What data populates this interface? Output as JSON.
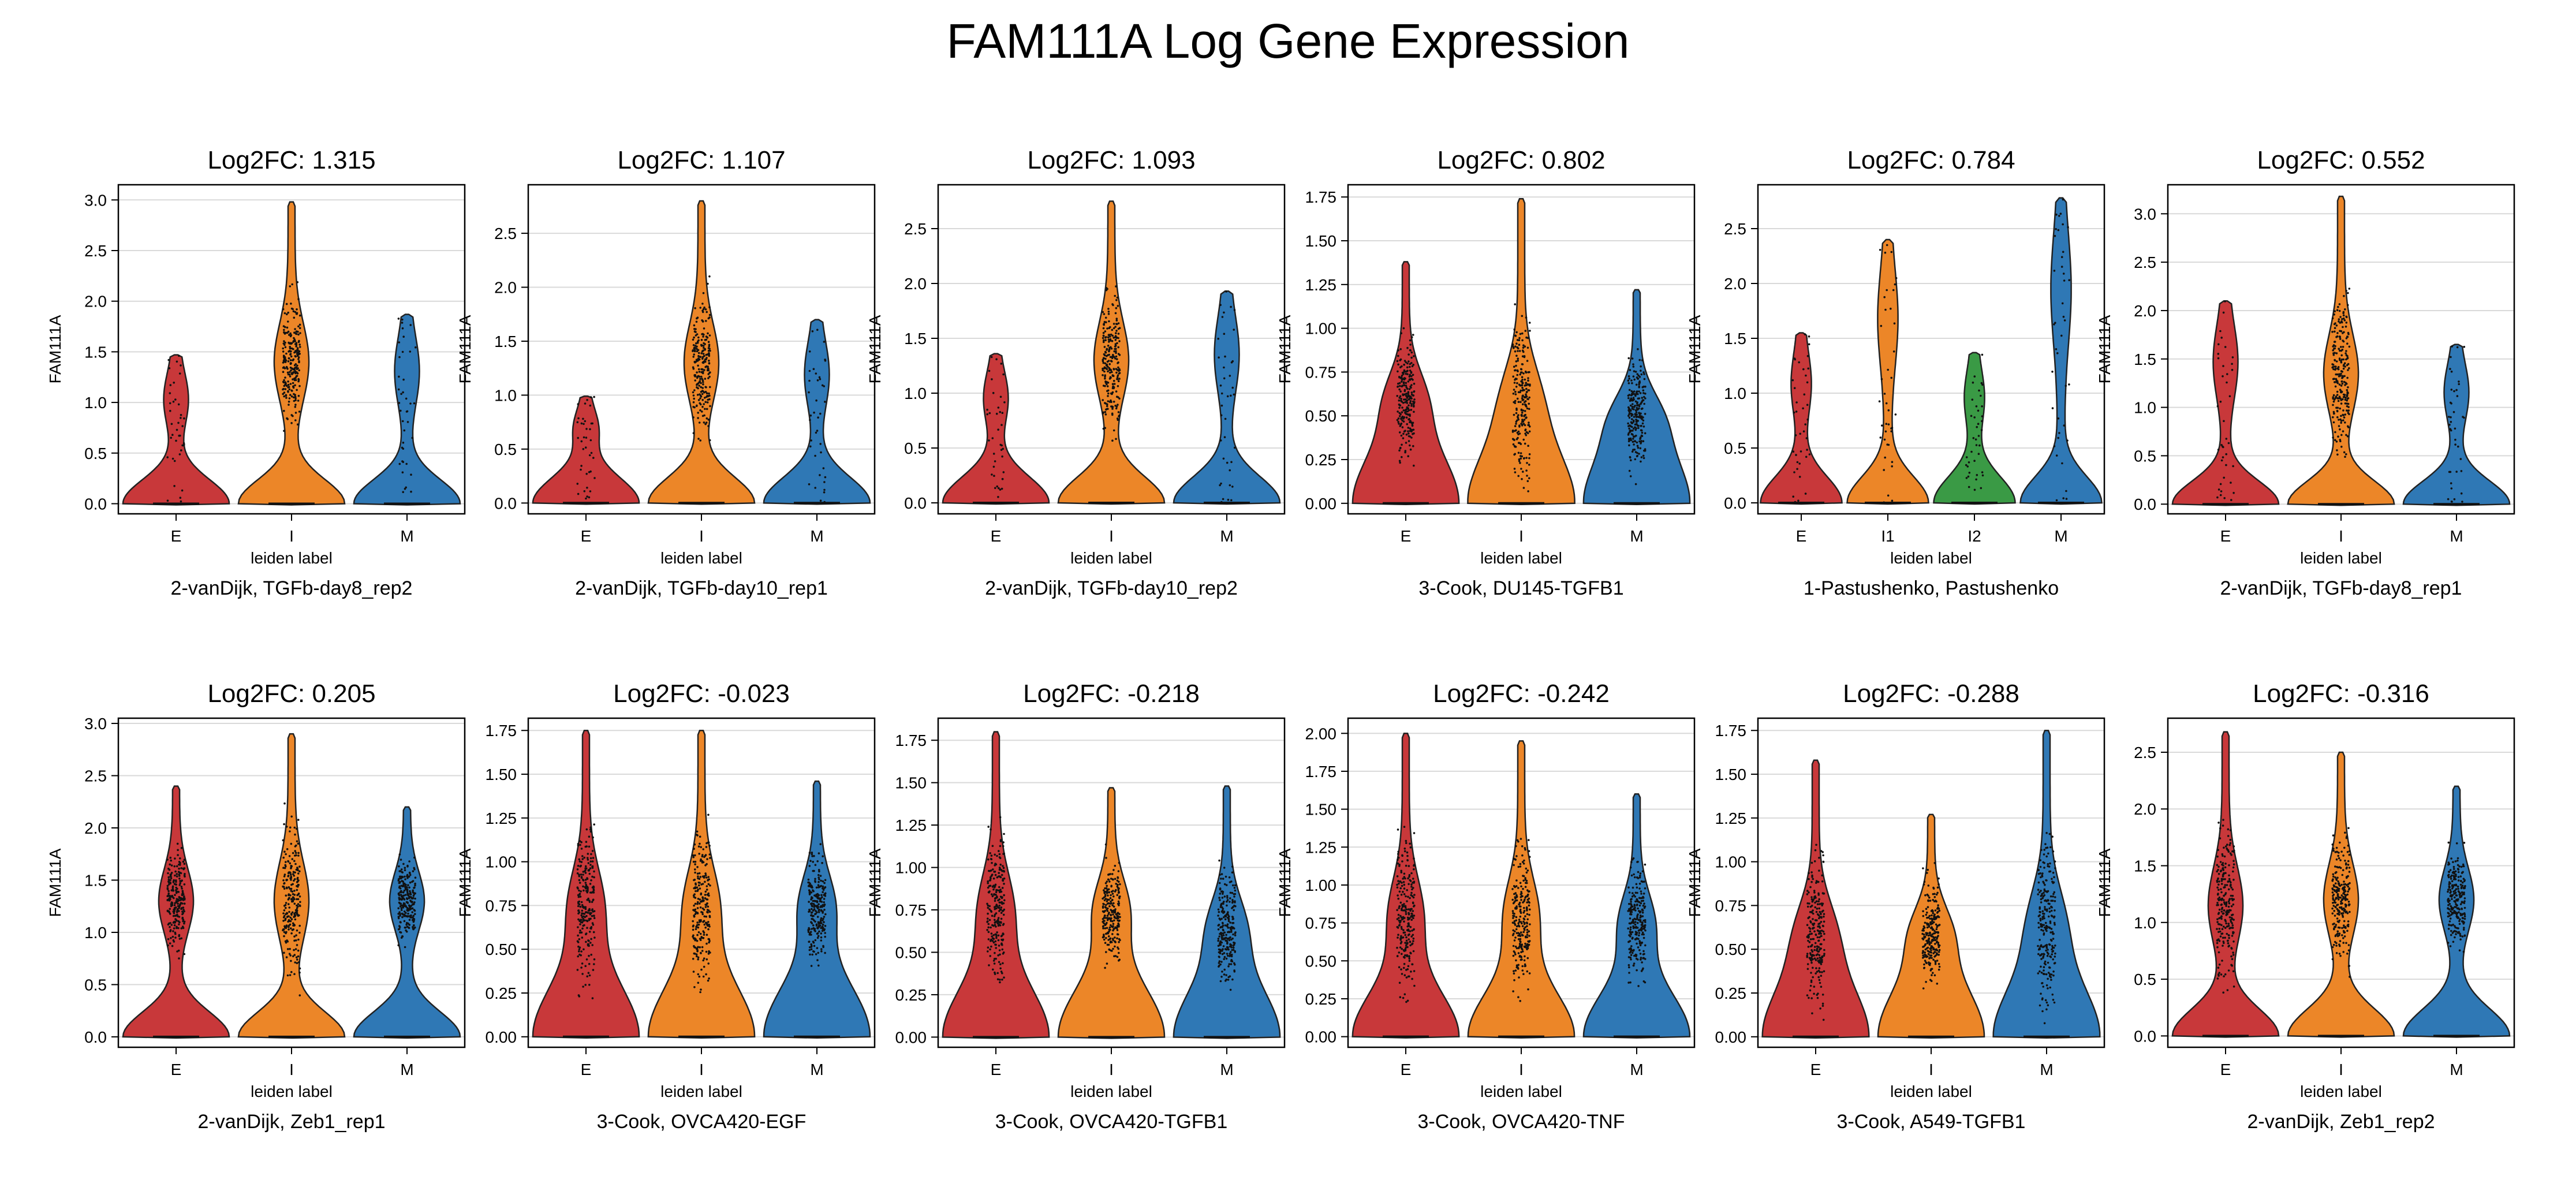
{
  "figure": {
    "title": "FAM111A Log Gene Expression"
  },
  "colors": {
    "E": "#c8383a",
    "I": "#ec8628",
    "I1": "#ec8628",
    "I2": "#3a9a45",
    "M": "#2f78b5"
  },
  "chart_data": [
    {
      "type": "violin",
      "title": "Log2FC: 1.315",
      "xlabel": "leiden label",
      "ylabel": "FAM111A",
      "subtitle": "2-vanDijk, TGFb-day8_rep2",
      "grid": true,
      "categories": [
        "E",
        "I",
        "M"
      ],
      "ylim": [
        -0.1,
        3.15
      ],
      "yticks": [
        0,
        0.5,
        1.0,
        1.5,
        2.0,
        2.5,
        3.0
      ],
      "ytick_labels": [
        "0.0",
        "0.5",
        "1.0",
        "1.5",
        "2.0",
        "2.5",
        "3.0"
      ],
      "series": [
        {
          "name": "E",
          "max": 1.47,
          "center": null
        },
        {
          "name": "I",
          "max": 2.98,
          "center": 1.4
        },
        {
          "name": "M",
          "max": 1.87,
          "center": null
        }
      ]
    },
    {
      "type": "violin",
      "title": "Log2FC: 1.107",
      "xlabel": "leiden label",
      "ylabel": "FAM111A",
      "subtitle": "2-vanDijk, TGFb-day10_rep1",
      "grid": true,
      "categories": [
        "E",
        "I",
        "M"
      ],
      "ylim": [
        -0.1,
        2.95
      ],
      "yticks": [
        0,
        0.5,
        1.0,
        1.5,
        2.0,
        2.5
      ],
      "ytick_labels": [
        "0.0",
        "0.5",
        "1.0",
        "1.5",
        "2.0",
        "2.5"
      ],
      "series": [
        {
          "name": "E",
          "max": 0.99,
          "center": null
        },
        {
          "name": "I",
          "max": 2.8,
          "center": 1.3
        },
        {
          "name": "M",
          "max": 1.7,
          "center": null
        }
      ]
    },
    {
      "type": "violin",
      "title": "Log2FC: 1.093",
      "xlabel": "leiden label",
      "ylabel": "FAM111A",
      "subtitle": "2-vanDijk, TGFb-day10_rep2",
      "grid": true,
      "categories": [
        "E",
        "I",
        "M"
      ],
      "ylim": [
        -0.1,
        2.9
      ],
      "yticks": [
        0,
        0.5,
        1.0,
        1.5,
        2.0,
        2.5
      ],
      "ytick_labels": [
        "0.0",
        "0.5",
        "1.0",
        "1.5",
        "2.0",
        "2.5"
      ],
      "series": [
        {
          "name": "E",
          "max": 1.36,
          "center": null
        },
        {
          "name": "I",
          "max": 2.75,
          "center": 1.3
        },
        {
          "name": "M",
          "max": 1.93,
          "center": null
        }
      ]
    },
    {
      "type": "violin",
      "title": "Log2FC: 0.802",
      "xlabel": "leiden label",
      "ylabel": "FAM111A",
      "subtitle": "3-Cook, DU145-TGFB1",
      "grid": true,
      "categories": [
        "E",
        "I",
        "M"
      ],
      "ylim": [
        -0.06,
        1.82
      ],
      "yticks": [
        0,
        0.25,
        0.5,
        0.75,
        1.0,
        1.25,
        1.5,
        1.75
      ],
      "ytick_labels": [
        "0.00",
        "0.25",
        "0.50",
        "0.75",
        "1.00",
        "1.25",
        "1.50",
        "1.75"
      ],
      "series": [
        {
          "name": "E",
          "max": 1.38,
          "center": 0.6
        },
        {
          "name": "I",
          "max": 1.74,
          "center": 0.6
        },
        {
          "name": "M",
          "max": 1.22,
          "center": 0.5
        }
      ]
    },
    {
      "type": "violin",
      "title": "Log2FC: 0.784",
      "xlabel": "leiden label",
      "ylabel": "FAM111A",
      "subtitle": "1-Pastushenko, Pastushenko",
      "grid": true,
      "categories": [
        "E",
        "I1",
        "I2",
        "M"
      ],
      "ylim": [
        -0.1,
        2.9
      ],
      "yticks": [
        0,
        0.5,
        1.0,
        1.5,
        2.0,
        2.5
      ],
      "ytick_labels": [
        "0.0",
        "0.5",
        "1.0",
        "1.5",
        "2.0",
        "2.5"
      ],
      "series": [
        {
          "name": "E",
          "max": 1.55,
          "center": null
        },
        {
          "name": "I1",
          "max": 2.4,
          "center": null
        },
        {
          "name": "I2",
          "max": 1.37,
          "center": null
        },
        {
          "name": "M",
          "max": 2.78,
          "center": null
        }
      ]
    },
    {
      "type": "violin",
      "title": "Log2FC: 0.552",
      "xlabel": "leiden label",
      "ylabel": "FAM111A",
      "subtitle": "2-vanDijk, TGFb-day8_rep1",
      "grid": true,
      "categories": [
        "E",
        "I",
        "M"
      ],
      "ylim": [
        -0.1,
        3.3
      ],
      "yticks": [
        0,
        0.5,
        1.0,
        1.5,
        2.0,
        2.5,
        3.0
      ],
      "ytick_labels": [
        "0.0",
        "0.5",
        "1.0",
        "1.5",
        "2.0",
        "2.5",
        "3.0"
      ],
      "series": [
        {
          "name": "E",
          "max": 2.1,
          "center": null
        },
        {
          "name": "I",
          "max": 3.18,
          "center": 1.35
        },
        {
          "name": "M",
          "max": 1.65,
          "center": null
        }
      ]
    },
    {
      "type": "violin",
      "title": "Log2FC: 0.205",
      "xlabel": "leiden label",
      "ylabel": "FAM111A",
      "subtitle": "2-vanDijk, Zeb1_rep1",
      "grid": true,
      "categories": [
        "E",
        "I",
        "M"
      ],
      "ylim": [
        -0.1,
        3.05
      ],
      "yticks": [
        0,
        0.5,
        1.0,
        1.5,
        2.0,
        2.5,
        3.0
      ],
      "ytick_labels": [
        "0.0",
        "0.5",
        "1.0",
        "1.5",
        "2.0",
        "2.5",
        "3.0"
      ],
      "series": [
        {
          "name": "E",
          "max": 2.4,
          "center": 1.3
        },
        {
          "name": "I",
          "max": 2.9,
          "center": 1.3
        },
        {
          "name": "M",
          "max": 2.2,
          "center": 1.3
        }
      ]
    },
    {
      "type": "violin",
      "title": "Log2FC: -0.023",
      "xlabel": "leiden label",
      "ylabel": "FAM111A",
      "subtitle": "3-Cook, OVCA420-EGF",
      "grid": true,
      "categories": [
        "E",
        "I",
        "M"
      ],
      "ylim": [
        -0.06,
        1.82
      ],
      "yticks": [
        0,
        0.25,
        0.5,
        0.75,
        1.0,
        1.25,
        1.5,
        1.75
      ],
      "ytick_labels": [
        "0.00",
        "0.25",
        "0.50",
        "0.75",
        "1.00",
        "1.25",
        "1.50",
        "1.75"
      ],
      "series": [
        {
          "name": "E",
          "max": 1.75,
          "center": 0.75
        },
        {
          "name": "I",
          "max": 1.75,
          "center": 0.75
        },
        {
          "name": "M",
          "max": 1.46,
          "center": 0.75
        }
      ]
    },
    {
      "type": "violin",
      "title": "Log2FC: -0.218",
      "xlabel": "leiden label",
      "ylabel": "FAM111A",
      "subtitle": "3-Cook, OVCA420-TGFB1",
      "grid": true,
      "categories": [
        "E",
        "I",
        "M"
      ],
      "ylim": [
        -0.06,
        1.88
      ],
      "yticks": [
        0,
        0.25,
        0.5,
        0.75,
        1.0,
        1.25,
        1.5,
        1.75
      ],
      "ytick_labels": [
        "0.00",
        "0.25",
        "0.50",
        "0.75",
        "1.00",
        "1.25",
        "1.50",
        "1.75"
      ],
      "series": [
        {
          "name": "E",
          "max": 1.8,
          "center": 0.75
        },
        {
          "name": "I",
          "max": 1.47,
          "center": 0.75
        },
        {
          "name": "M",
          "max": 1.48,
          "center": 0.65
        }
      ]
    },
    {
      "type": "violin",
      "title": "Log2FC: -0.242",
      "xlabel": "leiden label",
      "ylabel": "FAM111A",
      "subtitle": "3-Cook, OVCA420-TNF",
      "grid": true,
      "categories": [
        "E",
        "I",
        "M"
      ],
      "ylim": [
        -0.07,
        2.1
      ],
      "yticks": [
        0,
        0.25,
        0.5,
        0.75,
        1.0,
        1.25,
        1.5,
        1.75,
        2.0
      ],
      "ytick_labels": [
        "0.00",
        "0.25",
        "0.50",
        "0.75",
        "1.00",
        "1.25",
        "1.50",
        "1.75",
        "2.00"
      ],
      "series": [
        {
          "name": "E",
          "max": 2.0,
          "center": 0.8
        },
        {
          "name": "I",
          "max": 1.95,
          "center": 0.8
        },
        {
          "name": "M",
          "max": 1.6,
          "center": 0.75
        }
      ]
    },
    {
      "type": "violin",
      "title": "Log2FC: -0.288",
      "xlabel": "leiden label",
      "ylabel": "FAM111A",
      "subtitle": "3-Cook, A549-TGFB1",
      "grid": true,
      "categories": [
        "E",
        "I",
        "M"
      ],
      "ylim": [
        -0.06,
        1.82
      ],
      "yticks": [
        0,
        0.25,
        0.5,
        0.75,
        1.0,
        1.25,
        1.5,
        1.75
      ],
      "ytick_labels": [
        "0.00",
        "0.25",
        "0.50",
        "0.75",
        "1.00",
        "1.25",
        "1.50",
        "1.75"
      ],
      "series": [
        {
          "name": "E",
          "max": 1.58,
          "center": 0.6
        },
        {
          "name": "I",
          "max": 1.27,
          "center": 0.6
        },
        {
          "name": "M",
          "max": 1.75,
          "center": 0.65
        }
      ]
    },
    {
      "type": "violin",
      "title": "Log2FC: -0.316",
      "xlabel": "leiden label",
      "ylabel": "FAM111A",
      "subtitle": "2-vanDijk, Zeb1_rep2",
      "grid": true,
      "categories": [
        "E",
        "I",
        "M"
      ],
      "ylim": [
        -0.1,
        2.8
      ],
      "yticks": [
        0,
        0.5,
        1.0,
        1.5,
        2.0,
        2.5
      ],
      "ytick_labels": [
        "0.0",
        "0.5",
        "1.0",
        "1.5",
        "2.0",
        "2.5"
      ],
      "series": [
        {
          "name": "E",
          "max": 2.68,
          "center": 1.15
        },
        {
          "name": "I",
          "max": 2.5,
          "center": 1.2
        },
        {
          "name": "M",
          "max": 2.2,
          "center": 1.2
        }
      ]
    }
  ]
}
